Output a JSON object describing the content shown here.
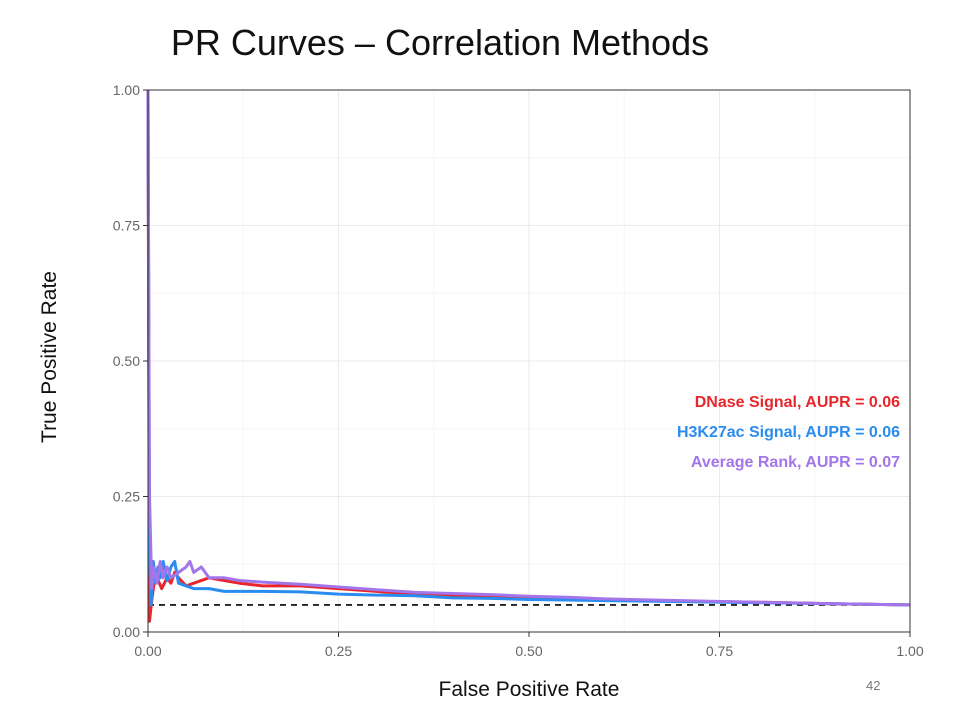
{
  "page": {
    "number": "42"
  },
  "chart_data": {
    "type": "line",
    "title": "PR Curves – Correlation Methods",
    "xlabel": "False Positive Rate",
    "ylabel": "True Positive Rate",
    "xlim": [
      0,
      1
    ],
    "ylim": [
      0,
      1
    ],
    "xticks": [
      "0.00",
      "0.25",
      "0.50",
      "0.75",
      "1.00"
    ],
    "yticks": [
      "0.00",
      "0.25",
      "0.50",
      "0.75",
      "1.00"
    ],
    "grid": true,
    "legend_placement": "right-middle",
    "baseline": {
      "y": 0.05,
      "style": "dashed",
      "color": "#000000"
    },
    "series": [
      {
        "name": "DNase Signal, AUPR = 0.06",
        "color": "#E8262B",
        "x": [
          0.0,
          0.002,
          0.005,
          0.008,
          0.012,
          0.018,
          0.025,
          0.03,
          0.035,
          0.04,
          0.05,
          0.06,
          0.08,
          0.1,
          0.12,
          0.15,
          0.2,
          0.25,
          0.3,
          0.35,
          0.4,
          0.45,
          0.5,
          0.55,
          0.6,
          0.7,
          0.8,
          0.9,
          1.0
        ],
        "y": [
          1.0,
          0.02,
          0.06,
          0.09,
          0.1,
          0.08,
          0.1,
          0.09,
          0.11,
          0.1,
          0.085,
          0.09,
          0.1,
          0.095,
          0.09,
          0.085,
          0.085,
          0.08,
          0.075,
          0.07,
          0.068,
          0.066,
          0.065,
          0.062,
          0.06,
          0.057,
          0.055,
          0.052,
          0.05
        ]
      },
      {
        "name": "H3K27ac Signal, AUPR = 0.06",
        "color": "#2B8CF0",
        "x": [
          0.0,
          0.002,
          0.004,
          0.007,
          0.01,
          0.013,
          0.016,
          0.02,
          0.025,
          0.03,
          0.035,
          0.04,
          0.05,
          0.06,
          0.08,
          0.1,
          0.12,
          0.15,
          0.2,
          0.25,
          0.3,
          0.35,
          0.4,
          0.45,
          0.5,
          0.55,
          0.6,
          0.7,
          0.8,
          0.9,
          1.0
        ],
        "y": [
          1.0,
          0.16,
          0.05,
          0.13,
          0.09,
          0.12,
          0.1,
          0.13,
          0.095,
          0.12,
          0.13,
          0.09,
          0.085,
          0.08,
          0.08,
          0.075,
          0.075,
          0.075,
          0.074,
          0.07,
          0.068,
          0.067,
          0.063,
          0.062,
          0.06,
          0.059,
          0.058,
          0.056,
          0.054,
          0.052,
          0.05
        ]
      },
      {
        "name": "Average Rank, AUPR = 0.07",
        "color": "#A276EA",
        "x": [
          0.0,
          0.002,
          0.005,
          0.008,
          0.012,
          0.016,
          0.02,
          0.025,
          0.03,
          0.04,
          0.05,
          0.055,
          0.06,
          0.07,
          0.08,
          0.1,
          0.12,
          0.15,
          0.2,
          0.25,
          0.3,
          0.35,
          0.4,
          0.45,
          0.5,
          0.55,
          0.6,
          0.7,
          0.8,
          0.9,
          1.0
        ],
        "y": [
          1.0,
          0.25,
          0.08,
          0.12,
          0.09,
          0.13,
          0.1,
          0.12,
          0.1,
          0.11,
          0.12,
          0.13,
          0.11,
          0.12,
          0.1,
          0.1,
          0.095,
          0.092,
          0.088,
          0.083,
          0.078,
          0.073,
          0.071,
          0.069,
          0.066,
          0.064,
          0.061,
          0.058,
          0.055,
          0.052,
          0.05
        ]
      }
    ]
  }
}
